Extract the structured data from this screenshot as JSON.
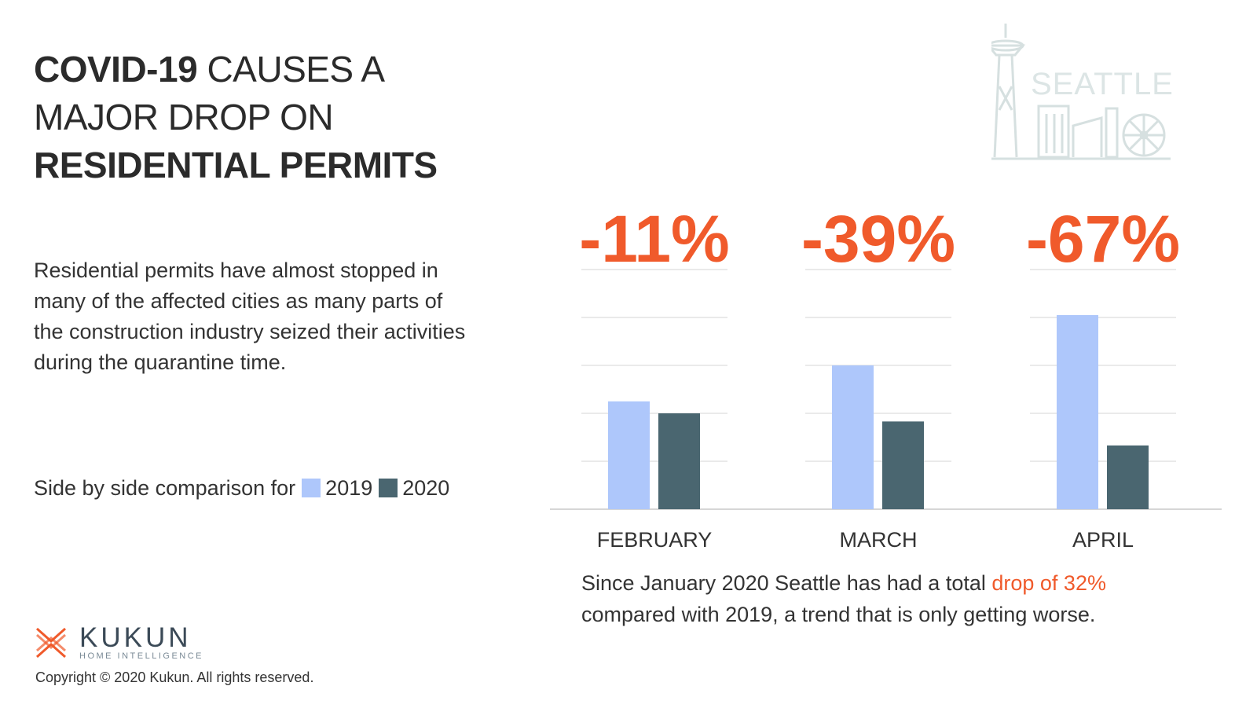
{
  "title": {
    "line1_bold": "COVID-19",
    "line1_rest": " CAUSES A",
    "line2": "MAJOR DROP ON",
    "line3": "RESIDENTIAL PERMITS"
  },
  "description": "Residential permits have almost stopped in many of the affected cities as many parts of the construction industry seized their activities during the quarantine time.",
  "legend": {
    "prefix": "Side by side comparison for",
    "items": [
      {
        "label": "2019",
        "color": "#aec7fb"
      },
      {
        "label": "2020",
        "color": "#4a6670"
      }
    ]
  },
  "colors": {
    "accent": "#f05a2b",
    "bar_2019": "#aec7fb",
    "bar_2020": "#4a6670",
    "gridline": "#d5d5d5",
    "skyline": "#dce5e5"
  },
  "chart_data": {
    "type": "bar",
    "categories": [
      "FEBRUARY",
      "MARCH",
      "APRIL"
    ],
    "series": [
      {
        "name": "2019",
        "values": [
          2.25,
          3.0,
          4.05
        ]
      },
      {
        "name": "2020",
        "values": [
          2.0,
          1.83,
          1.33
        ]
      }
    ],
    "annotations": [
      "-11%",
      "-39%",
      "-67%"
    ],
    "ylim": [
      0,
      5
    ],
    "grid": true,
    "legend_placement": "left"
  },
  "skyline": {
    "label": "SEATTLE"
  },
  "note": {
    "before": "Since January 2020 Seattle has had a total ",
    "highlight": "drop of 32%",
    "after": " compared with 2019, a trend that is only getting worse."
  },
  "logo": {
    "name": "KUKUN",
    "tagline": "HOME INTELLIGENCE"
  },
  "copyright": "Copyright © 2020 Kukun. All rights reserved."
}
